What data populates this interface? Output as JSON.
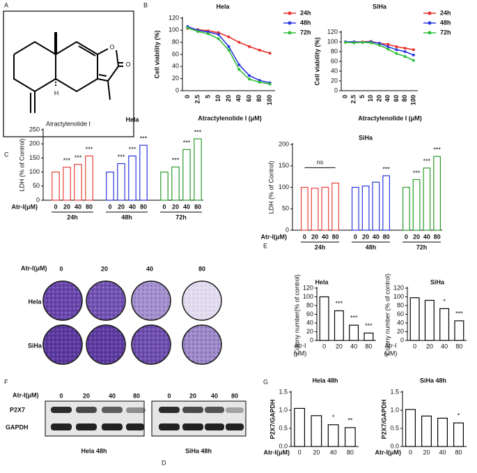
{
  "panel_letters": [
    "A",
    "B",
    "C",
    "D",
    "E",
    "F",
    "G"
  ],
  "structure": {
    "atoms": [
      "O",
      "O",
      "H"
    ],
    "name": "Atractylenolide I"
  },
  "colony_assay": {
    "dose_label": "Atr-I(μM)",
    "doses": [
      "0",
      "20",
      "40",
      "80"
    ],
    "cell_lines": [
      "Hela",
      "SiHa"
    ]
  },
  "western_blot": {
    "dose_label": "Atr-I(μM)",
    "doses": [
      "0",
      "20",
      "40",
      "80"
    ],
    "proteins": [
      "P2X7",
      "GAPDH"
    ],
    "groups": [
      "Hela 48h",
      "SiHa 48h"
    ]
  },
  "chart_data": [
    {
      "type": "line",
      "title": "Hela",
      "ylabel": "Cell viability (%)",
      "xlabel": "Atractylenolide I (μM)",
      "categories": [
        "0",
        "2.5",
        "5",
        "10",
        "20",
        "40",
        "60",
        "80",
        "100"
      ],
      "series": [
        {
          "name": "24h",
          "color": "#e8312b",
          "values": [
            103,
            101,
            99,
            96,
            89,
            80,
            73,
            67,
            62
          ]
        },
        {
          "name": "48h",
          "color": "#2a36e0",
          "values": [
            106,
            100,
            97,
            93,
            73,
            43,
            25,
            17,
            13
          ]
        },
        {
          "name": "72h",
          "color": "#2fbf3a",
          "values": [
            104,
            98,
            94,
            86,
            67,
            35,
            19,
            14,
            11
          ]
        }
      ],
      "ylim": [
        0,
        120
      ],
      "yticks": [
        0,
        20,
        40,
        60,
        80,
        100,
        120
      ]
    },
    {
      "type": "line",
      "title": "SiHa",
      "ylabel": "Cell viability (%)",
      "xlabel": "Atractylenolide I (μM)",
      "categories": [
        "0",
        "2.5",
        "5",
        "10",
        "20",
        "40",
        "60",
        "80",
        "100"
      ],
      "series": [
        {
          "name": "24h",
          "color": "#e8312b",
          "values": [
            100,
            100,
            100,
            101,
            97,
            95,
            90,
            87,
            84
          ]
        },
        {
          "name": "48h",
          "color": "#2a36e0",
          "values": [
            100,
            100,
            99,
            100,
            97,
            90,
            84,
            80,
            73
          ]
        },
        {
          "name": "72h",
          "color": "#2fbf3a",
          "values": [
            99,
            98,
            99,
            98,
            93,
            85,
            76,
            70,
            62
          ]
        }
      ],
      "ylim": [
        0,
        120
      ],
      "yticks": [
        0,
        20,
        40,
        60,
        80,
        100,
        120
      ]
    },
    {
      "type": "grouped-bar",
      "title": "Hela",
      "ylabel": "LDH (% of Control)",
      "xlabel": "Atr-I(μM)",
      "categories": [
        "0",
        "20",
        "40",
        "80"
      ],
      "series": [
        {
          "name": "24h",
          "color": "#e8403a",
          "values": [
            100,
            117,
            127,
            157
          ],
          "annotations": [
            null,
            "***",
            "***",
            "***"
          ]
        },
        {
          "name": "48h",
          "color": "#2a36e0",
          "values": [
            100,
            130,
            157,
            195
          ],
          "annotations": [
            null,
            "***",
            "***",
            "***"
          ]
        },
        {
          "name": "72h",
          "color": "#2a9a2a",
          "values": [
            100,
            118,
            180,
            218
          ],
          "annotations": [
            null,
            "***",
            "***",
            "***"
          ]
        }
      ],
      "ylim": [
        0,
        250
      ],
      "yticks": [
        0,
        50,
        100,
        150,
        200,
        250
      ]
    },
    {
      "type": "grouped-bar",
      "title": "SiHa",
      "ylabel": "LDH (% of Control)",
      "xlabel": "Atr-I(μM)",
      "categories": [
        "0",
        "20",
        "40",
        "80"
      ],
      "series": [
        {
          "name": "24h",
          "color": "#e8403a",
          "values": [
            100,
            98,
            100,
            110
          ],
          "bracket_label": "ns"
        },
        {
          "name": "48h",
          "color": "#2a36e0",
          "values": [
            100,
            103,
            112,
            127
          ],
          "annotations": [
            null,
            null,
            null,
            "***"
          ]
        },
        {
          "name": "72h",
          "color": "#2a9a2a",
          "values": [
            100,
            118,
            145,
            172
          ],
          "annotations": [
            null,
            "***",
            "***",
            "***"
          ]
        }
      ],
      "ylim": [
        0,
        200
      ],
      "yticks": [
        0,
        50,
        100,
        150,
        200
      ]
    },
    {
      "type": "bar",
      "title": "Hela",
      "ylabel": "Colony number(% of control)",
      "xlabel": [
        "Atr-I",
        "(μM)"
      ],
      "categories": [
        "0",
        "20",
        "40",
        "80"
      ],
      "values": [
        100,
        68,
        35,
        17
      ],
      "annotations": [
        null,
        "***",
        "***",
        "***"
      ],
      "color": "#000000",
      "ylim": [
        0,
        120
      ],
      "yticks": [
        0,
        20,
        40,
        60,
        80,
        100,
        120
      ]
    },
    {
      "type": "bar",
      "title": "SiHa",
      "ylabel": "Colony number (% of control)",
      "xlabel": [
        "Atr-I",
        "(μM)"
      ],
      "categories": [
        "0",
        "20",
        "40",
        "80"
      ],
      "values": [
        98,
        92,
        73,
        45
      ],
      "annotations": [
        null,
        null,
        "*",
        "***"
      ],
      "color": "#000000",
      "ylim": [
        0,
        120
      ],
      "yticks": [
        0,
        20,
        40,
        60,
        80,
        100,
        120
      ]
    },
    {
      "type": "bar",
      "title": "Hela 48h",
      "ylabel": "P2X7/GAPDH",
      "xlabel": "Atr-I(μM)",
      "categories": [
        "0",
        "20",
        "40",
        "80"
      ],
      "values": [
        1.05,
        0.85,
        0.6,
        0.52
      ],
      "annotations": [
        null,
        null,
        "*",
        "**"
      ],
      "color": "#000000",
      "ylim": [
        0,
        1.5
      ],
      "yticks": [
        {
          "value": 0,
          "label": "0.0"
        },
        0.5,
        {
          "value": 1,
          "label": "1.0"
        },
        1.5
      ]
    },
    {
      "type": "bar",
      "title": "SiHa 48h",
      "ylabel": "P2X7/GAPDH",
      "xlabel": "Atr-I(μM)",
      "categories": [
        "0",
        "20",
        "40",
        "80"
      ],
      "values": [
        1.02,
        0.84,
        0.78,
        0.65
      ],
      "annotations": [
        null,
        null,
        null,
        "*"
      ],
      "color": "#000000",
      "ylim": [
        0,
        1.5
      ],
      "yticks": [
        {
          "value": 0,
          "label": "0.0"
        },
        0.5,
        {
          "value": 1,
          "label": "1.0"
        },
        1.5
      ]
    }
  ]
}
